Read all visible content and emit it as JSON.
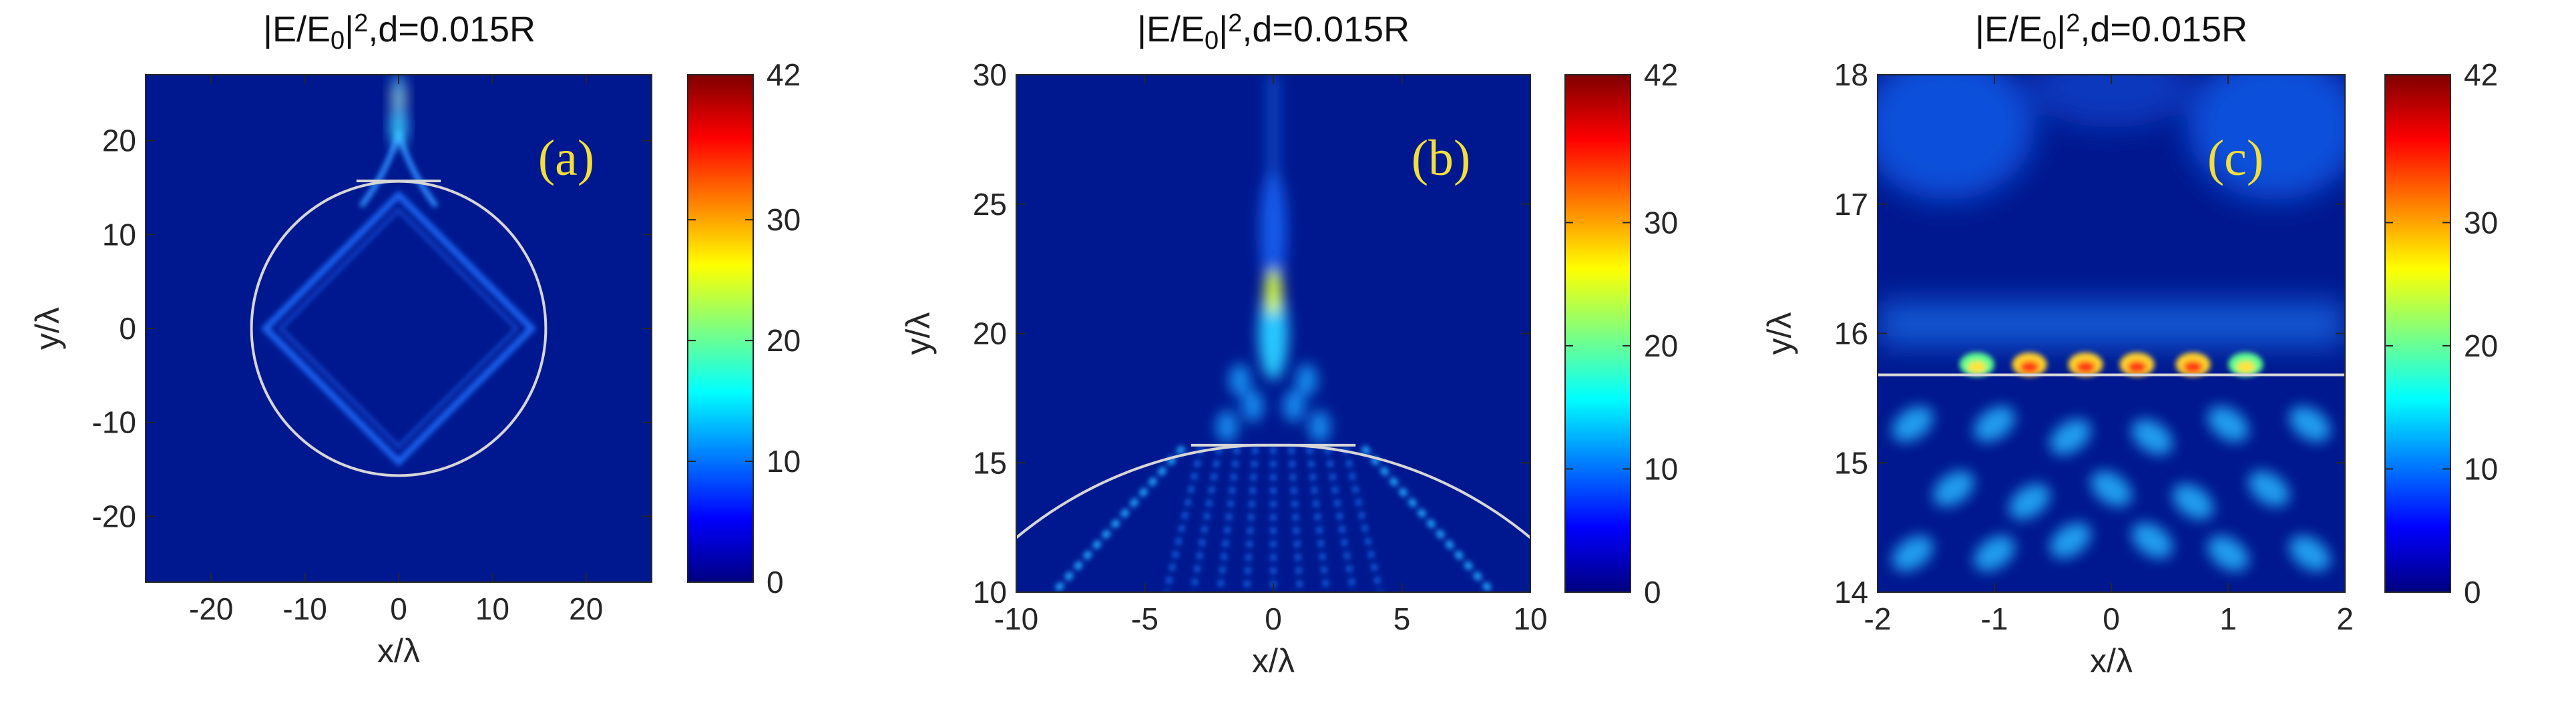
{
  "chart_data": [
    {
      "type": "heatmap",
      "title": "|E/E0|^2,d=0.015R",
      "panel_label": "(a)",
      "xlabel": "x/λ",
      "ylabel": "y/λ",
      "xlim": [
        -27,
        27
      ],
      "ylim": [
        -27,
        27
      ],
      "xticks": [
        -20,
        -10,
        0,
        10,
        20
      ],
      "yticks": [
        -20,
        -10,
        0,
        10,
        20
      ],
      "colorbar": {
        "min": 0,
        "max": 42,
        "ticks": [
          0,
          10,
          20,
          30,
          42
        ],
        "colormap": "jet"
      },
      "boundary": {
        "shape": "circle",
        "center": [
          0,
          0
        ],
        "radius": 15.7
      }
    },
    {
      "type": "heatmap",
      "title": "|E/E0|^2,d=0.015R",
      "panel_label": "(b)",
      "xlabel": "x/λ",
      "ylabel": "y/λ",
      "xlim": [
        -10,
        10
      ],
      "ylim": [
        10,
        30
      ],
      "xticks": [
        -10,
        -5,
        0,
        5,
        10
      ],
      "yticks": [
        10,
        15,
        20,
        25,
        30
      ],
      "colorbar": {
        "min": 0,
        "max": 42,
        "ticks": [
          0,
          10,
          20,
          30,
          42
        ],
        "colormap": "jet"
      },
      "boundary": {
        "shape": "circle-arc",
        "center": [
          0,
          0
        ],
        "radius": 15.7
      }
    },
    {
      "type": "heatmap",
      "title": "|E/E0|^2,d=0.015R",
      "panel_label": "(c)",
      "xlabel": "x/λ",
      "ylabel": "y/λ",
      "xlim": [
        -2,
        2
      ],
      "ylim": [
        14,
        18
      ],
      "xticks": [
        -2,
        -1,
        0,
        1,
        2
      ],
      "yticks": [
        14,
        15,
        16,
        17,
        18
      ],
      "colorbar": {
        "min": 0,
        "max": 42,
        "ticks": [
          0,
          10,
          20,
          30,
          42
        ],
        "colormap": "jet"
      },
      "boundary": {
        "shape": "line",
        "y": 15.68
      }
    }
  ],
  "colors": {
    "background_field": "#00188f",
    "boundary_line": "#d6d6d6",
    "panel_label": "#f2df3a",
    "jet_stops": [
      "#00007f",
      "#0000ff",
      "#007fff",
      "#00ffff",
      "#7fff7f",
      "#ffff00",
      "#ff7f00",
      "#ff0000",
      "#7f0000"
    ]
  }
}
